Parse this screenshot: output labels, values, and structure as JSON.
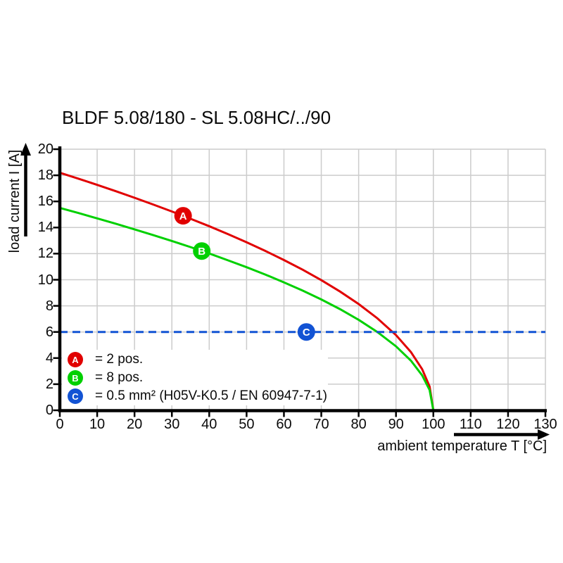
{
  "title": "BLDF 5.08/180 - SL 5.08HC/../90",
  "axes": {
    "x": {
      "label": "ambient temperature T [°C]",
      "ticks": [
        0,
        10,
        20,
        30,
        40,
        50,
        60,
        70,
        80,
        90,
        100,
        110,
        120,
        130
      ]
    },
    "y": {
      "label": "load current I [A]",
      "ticks": [
        0,
        2,
        4,
        6,
        8,
        10,
        12,
        14,
        16,
        18,
        20
      ]
    }
  },
  "legend": {
    "items": [
      {
        "letter": "A",
        "color": "#e10000",
        "label": "= 2 pos."
      },
      {
        "letter": "B",
        "color": "#00d000",
        "label": "= 8 pos."
      },
      {
        "letter": "C",
        "color": "#1253d4",
        "label": "= 0.5 mm² (H05V-K0.5 / EN 60947-7-1)"
      }
    ]
  },
  "chart_data": {
    "type": "line",
    "title": "BLDF 5.08/180 - SL 5.08HC/../90",
    "xlabel": "ambient temperature T [°C]",
    "ylabel": "load current I [A]",
    "xlim": [
      0,
      130
    ],
    "ylim": [
      0,
      20
    ],
    "grid": true,
    "x_tick_step": 10,
    "y_tick_step": 2,
    "legend_position": "inside lower-left",
    "series": [
      {
        "name": "A = 2 pos.",
        "letter": "A",
        "color": "#e10000",
        "style": "solid",
        "points": [
          [
            0,
            18.2
          ],
          [
            5,
            17.74
          ],
          [
            10,
            17.27
          ],
          [
            15,
            16.78
          ],
          [
            20,
            16.28
          ],
          [
            25,
            15.76
          ],
          [
            30,
            15.23
          ],
          [
            35,
            14.67
          ],
          [
            40,
            14.1
          ],
          [
            45,
            13.5
          ],
          [
            50,
            12.87
          ],
          [
            55,
            12.21
          ],
          [
            60,
            11.51
          ],
          [
            65,
            10.77
          ],
          [
            70,
            9.97
          ],
          [
            75,
            9.1
          ],
          [
            80,
            8.14
          ],
          [
            85,
            7.05
          ],
          [
            90,
            5.76
          ],
          [
            94,
            4.46
          ],
          [
            97,
            3.15
          ],
          [
            99,
            1.82
          ],
          [
            100,
            0
          ]
        ]
      },
      {
        "name": "B = 8 pos.",
        "letter": "B",
        "color": "#00d000",
        "style": "solid",
        "points": [
          [
            0,
            15.5
          ],
          [
            5,
            15.11
          ],
          [
            10,
            14.7
          ],
          [
            15,
            14.29
          ],
          [
            20,
            13.86
          ],
          [
            25,
            13.42
          ],
          [
            30,
            12.97
          ],
          [
            35,
            12.5
          ],
          [
            40,
            12.01
          ],
          [
            45,
            11.49
          ],
          [
            50,
            10.96
          ],
          [
            55,
            10.4
          ],
          [
            60,
            9.8
          ],
          [
            65,
            9.17
          ],
          [
            70,
            8.49
          ],
          [
            75,
            7.75
          ],
          [
            80,
            6.93
          ],
          [
            85,
            6.0
          ],
          [
            90,
            4.9
          ],
          [
            94,
            3.8
          ],
          [
            97,
            2.68
          ],
          [
            99,
            1.55
          ],
          [
            100,
            0
          ]
        ]
      },
      {
        "name": "C = 0.5 mm² (H05V-K0.5 / EN 60947-7-1)",
        "letter": "C",
        "color": "#1253d4",
        "style": "dashed",
        "points": [
          [
            0,
            6
          ],
          [
            130,
            6
          ]
        ]
      }
    ],
    "markers": [
      {
        "letter": "A",
        "x": 33,
        "y": 14.9
      },
      {
        "letter": "B",
        "x": 38,
        "y": 12.2
      },
      {
        "letter": "C",
        "x": 66,
        "y": 6
      }
    ]
  },
  "colors": {
    "curve_a": "#e10000",
    "curve_b": "#00d000",
    "curve_c": "#1253d4",
    "grid": "#cccccc",
    "axis": "#000000"
  }
}
